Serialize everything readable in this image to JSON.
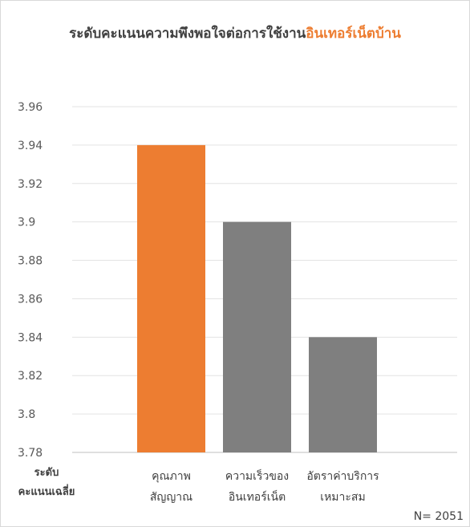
{
  "chart_data": {
    "type": "bar",
    "title_main": "ระดับคะแนนความพึงพอใจต่อการใช้งาน",
    "title_highlight": "อินเทอร์เน็ตบ้าน",
    "ylabel_lines": [
      "ระดับ",
      "คะแนนเฉลี่ย"
    ],
    "categories": [
      [
        "คุณภาพ",
        "สัญญาณ"
      ],
      [
        "ความเร็วของ",
        "อินเทอร์เน็ต"
      ],
      [
        "อัตราค่าบริการ",
        "เหมาะสม"
      ]
    ],
    "values": [
      3.94,
      3.9,
      3.84
    ],
    "bar_colors": [
      "#ed7d31",
      "#7f7f7f",
      "#7f7f7f"
    ],
    "ylim": [
      3.78,
      3.96
    ],
    "yticks": [
      "3.78",
      "3.8",
      "3.82",
      "3.84",
      "3.86",
      "3.88",
      "3.9",
      "3.92",
      "3.94",
      "3.96"
    ],
    "grid": true,
    "note": "N= 2051"
  }
}
